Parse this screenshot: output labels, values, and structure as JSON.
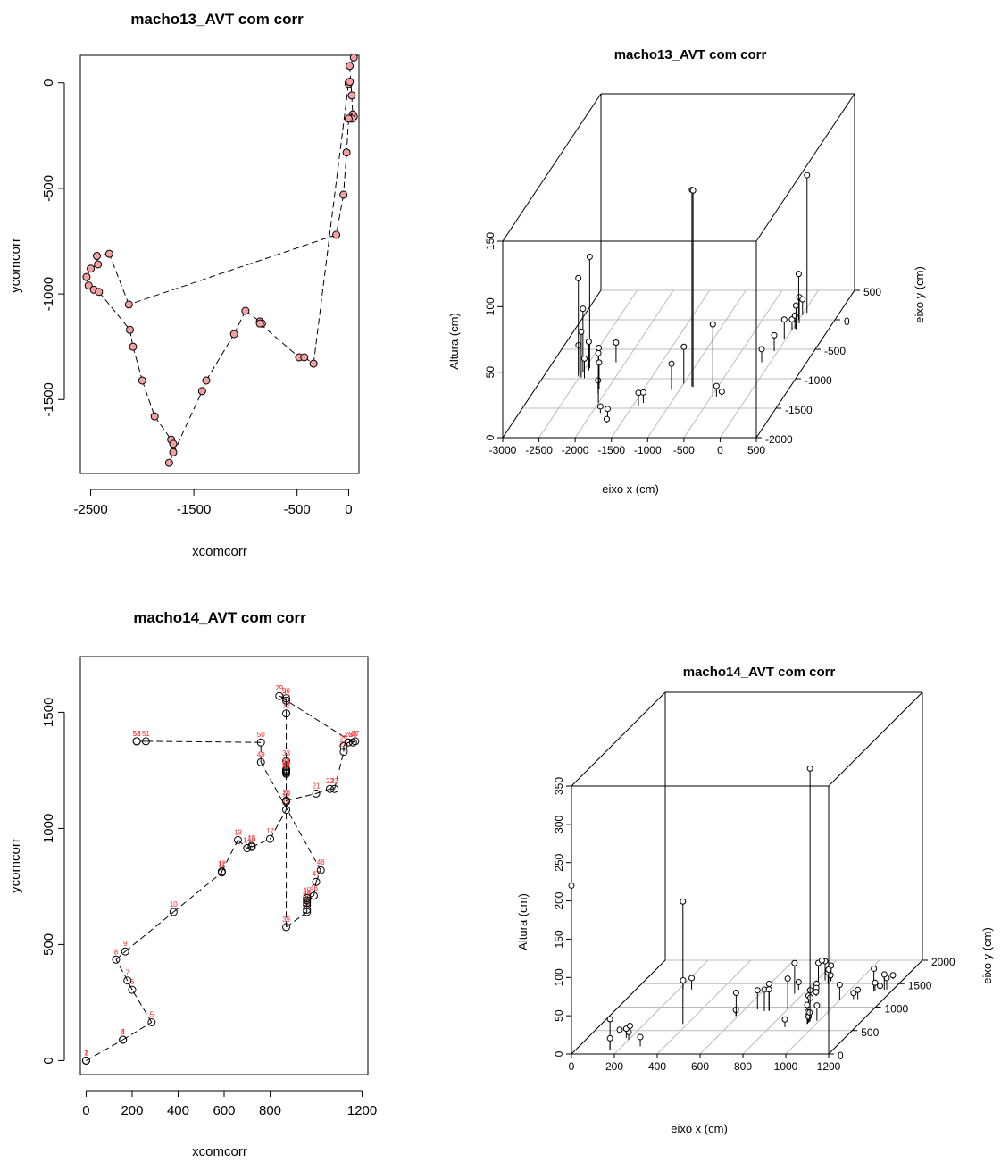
{
  "chart_data": [
    {
      "type": "line",
      "title": "macho13_AVT com corr",
      "xlabel": "xcomcorr",
      "ylabel": "ycomcorr",
      "xlim": [
        -2600,
        100
      ],
      "ylim": [
        -1850,
        130
      ],
      "xticks": [
        -2500,
        -1500,
        -500,
        0
      ],
      "yticks": [
        0,
        -500,
        -1000,
        -1500
      ],
      "grid": false,
      "point_labels_color": "#ff2a2a",
      "x": [
        50,
        10,
        30,
        40,
        50,
        30,
        0,
        -20,
        -50,
        -120,
        -2130,
        -2320,
        -2440,
        -2430,
        -2500,
        -2540,
        -2520,
        -2470,
        -2420,
        -2120,
        -2090,
        -2000,
        -1880,
        -1720,
        -1700,
        -1700,
        -1740,
        -1420,
        -1380,
        -1110,
        -1000,
        -860,
        -840,
        -860,
        -480,
        -430,
        -340,
        0,
        0,
        10
      ],
      "y": [
        120,
        80,
        -60,
        -150,
        -160,
        -170,
        -170,
        -330,
        -530,
        -720,
        -1050,
        -810,
        -820,
        -860,
        -880,
        -920,
        -960,
        -980,
        -990,
        -1170,
        -1250,
        -1410,
        -1580,
        -1690,
        -1710,
        -1750,
        -1800,
        -1460,
        -1410,
        -1190,
        -1080,
        -1130,
        -1140,
        -1140,
        -1300,
        -1300,
        -1330,
        0,
        -5,
        5
      ]
    },
    {
      "type": "scatter",
      "title": "macho13_AVT com corr",
      "xlabel": "eixo x (cm)",
      "ylabel": "Altura (cm)",
      "zlabel": "eixo y (cm)",
      "xlim": [
        -3000,
        500
      ],
      "ylim": [
        -2000,
        500
      ],
      "zlim": [
        0,
        150
      ],
      "xticks": [
        -3000,
        -2500,
        -2000,
        -1500,
        -1000,
        -500,
        0,
        500
      ],
      "yticks": [
        -2000,
        -1500,
        -1000,
        -500,
        0,
        500
      ],
      "zticks": [
        0,
        50,
        100,
        150
      ],
      "points": [
        [
          -2540,
          -920,
          22
        ],
        [
          -2500,
          -880,
          48
        ],
        [
          -2520,
          -960,
          75
        ],
        [
          -2440,
          -820,
          85
        ],
        [
          -2430,
          -860,
          22
        ],
        [
          -2470,
          -980,
          35
        ],
        [
          -2420,
          -990,
          15
        ],
        [
          -2320,
          -810,
          15
        ],
        [
          -2130,
          -720,
          15
        ],
        [
          -2090,
          -1250,
          10
        ],
        [
          -2000,
          -1410,
          38
        ],
        [
          -2120,
          -1170,
          20
        ],
        [
          -1880,
          -1580,
          5
        ],
        [
          -1720,
          -1690,
          8
        ],
        [
          -1700,
          -1750,
          3
        ],
        [
          -1420,
          -1460,
          10
        ],
        [
          -1380,
          -1410,
          8
        ],
        [
          -1110,
          -1190,
          20
        ],
        [
          -1000,
          -1080,
          28
        ],
        [
          -860,
          -1130,
          150
        ],
        [
          -840,
          -1140,
          150
        ],
        [
          -480,
          -1300,
          55
        ],
        [
          -430,
          -1300,
          8
        ],
        [
          -340,
          -1330,
          5
        ],
        [
          -120,
          -720,
          10
        ],
        [
          -50,
          -530,
          12
        ],
        [
          -20,
          -330,
          15
        ],
        [
          0,
          -170,
          8
        ],
        [
          30,
          -150,
          10
        ],
        [
          40,
          -60,
          20
        ],
        [
          50,
          -160,
          18
        ],
        [
          10,
          80,
          12
        ],
        [
          50,
          120,
          105
        ],
        [
          0,
          0,
          35
        ]
      ]
    },
    {
      "type": "line",
      "title": "macho14_AVT com corr",
      "xlabel": "xcomcorr",
      "ylabel": "ycomcorr",
      "xlim": [
        -25,
        1225
      ],
      "ylim": [
        -60,
        1740
      ],
      "xticks": [
        0,
        200,
        400,
        600,
        800,
        1200
      ],
      "yticks": [
        0,
        500,
        1000,
        1500
      ],
      "grid": false,
      "point_labels_color": "#ff2a2a",
      "x": [
        0,
        0,
        160,
        160,
        285,
        200,
        180,
        130,
        170,
        380,
        590,
        590,
        660,
        700,
        720,
        720,
        800,
        870,
        870,
        870,
        1000,
        1060,
        1080,
        1120,
        1120,
        1140,
        1170,
        1160,
        840,
        870,
        870,
        870,
        870,
        870,
        870,
        870,
        870,
        870,
        870,
        960,
        960,
        960,
        960,
        960,
        960,
        990,
        1000,
        1020,
        760,
        760,
        260,
        220,
        220
      ],
      "y": [
        0,
        0,
        90,
        90,
        165,
        305,
        345,
        435,
        470,
        640,
        810,
        815,
        950,
        915,
        925,
        920,
        955,
        1080,
        1115,
        1120,
        1150,
        1170,
        1170,
        1330,
        1355,
        1370,
        1375,
        1370,
        1570,
        1560,
        1550,
        1495,
        1290,
        1250,
        1255,
        1245,
        1240,
        1235,
        575,
        640,
        650,
        670,
        680,
        690,
        700,
        710,
        770,
        820,
        1285,
        1370,
        1375,
        1375,
        1375
      ],
      "labels": [
        "1",
        "2",
        "3",
        "4",
        "5",
        "6",
        "7",
        "8",
        "9",
        "10",
        "11",
        "12",
        "13",
        "14",
        "15",
        "16",
        "17",
        "18",
        "19",
        "20",
        "21",
        "22",
        "23",
        "24",
        "25",
        "26",
        "27",
        "28",
        "29",
        "30",
        "31",
        "32",
        "33",
        "34",
        "35",
        "36",
        "37",
        "38",
        "39",
        "40",
        "41",
        "42",
        "43",
        "44",
        "45",
        "46",
        "47",
        "48",
        "49",
        "50",
        "51",
        "52",
        "53"
      ]
    },
    {
      "type": "scatter",
      "title": "macho14_AVT com corr",
      "xlabel": "eixo x (cm)",
      "ylabel": "Altura (cm)",
      "zlabel": "eixo y (cm)",
      "xlim": [
        0,
        1200
      ],
      "ylim": [
        0,
        2000
      ],
      "zlim": [
        0,
        350
      ],
      "xticks": [
        0,
        200,
        400,
        600,
        800,
        1000,
        1200
      ],
      "yticks": [
        0,
        500,
        1000,
        1500,
        2000
      ],
      "zticks": [
        0,
        50,
        100,
        150,
        200,
        250,
        300,
        350
      ],
      "points": [
        [
          0,
          0,
          220
        ],
        [
          160,
          90,
          40
        ],
        [
          160,
          90,
          15
        ],
        [
          285,
          165,
          12
        ],
        [
          200,
          305,
          10
        ],
        [
          180,
          345,
          12
        ],
        [
          130,
          435,
          5
        ],
        [
          170,
          470,
          8
        ],
        [
          380,
          640,
          160
        ],
        [
          590,
          810,
          8
        ],
        [
          590,
          815,
          30
        ],
        [
          660,
          950,
          25
        ],
        [
          700,
          915,
          28
        ],
        [
          720,
          925,
          35
        ],
        [
          720,
          920,
          28
        ],
        [
          800,
          955,
          40
        ],
        [
          870,
          1080,
          10
        ],
        [
          870,
          1115,
          15
        ],
        [
          870,
          1120,
          5
        ],
        [
          1000,
          1150,
          20
        ],
        [
          1060,
          1170,
          8
        ],
        [
          1080,
          1170,
          12
        ],
        [
          1120,
          1330,
          30
        ],
        [
          1120,
          1355,
          10
        ],
        [
          1140,
          1370,
          5
        ],
        [
          1170,
          1375,
          15
        ],
        [
          1160,
          1370,
          20
        ],
        [
          840,
          1570,
          25
        ],
        [
          870,
          1560,
          20
        ],
        [
          870,
          1550,
          8
        ],
        [
          870,
          1495,
          15
        ],
        [
          870,
          1290,
          40
        ],
        [
          870,
          1250,
          15
        ],
        [
          870,
          1245,
          10
        ],
        [
          870,
          1240,
          5
        ],
        [
          870,
          575,
          10
        ],
        [
          960,
          640,
          25
        ],
        [
          960,
          650,
          15
        ],
        [
          960,
          670,
          8
        ],
        [
          960,
          690,
          12
        ],
        [
          960,
          700,
          330
        ],
        [
          990,
          710,
          20
        ],
        [
          1000,
          770,
          75
        ],
        [
          1020,
          820,
          60
        ],
        [
          760,
          1285,
          40
        ],
        [
          760,
          1370,
          10
        ],
        [
          260,
          1375,
          15
        ],
        [
          220,
          1375,
          12
        ],
        [
          1150,
          1600,
          5
        ]
      ]
    }
  ]
}
